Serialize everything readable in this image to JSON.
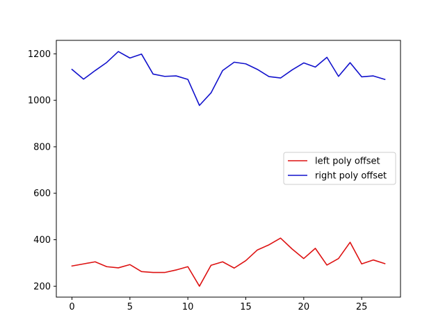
{
  "chart_data": {
    "type": "line",
    "title": "",
    "xlabel": "",
    "ylabel": "",
    "xlim": [
      -1.35,
      28.35
    ],
    "ylim": [
      153,
      1258
    ],
    "xticks": [
      0,
      5,
      10,
      15,
      20,
      25
    ],
    "yticks": [
      200,
      400,
      600,
      800,
      1000,
      1200
    ],
    "grid": false,
    "legend_position": "center-right",
    "x": [
      0,
      1,
      2,
      3,
      4,
      5,
      6,
      7,
      8,
      9,
      10,
      11,
      12,
      13,
      14,
      15,
      16,
      17,
      18,
      19,
      20,
      21,
      22,
      23,
      24,
      25,
      26,
      27
    ],
    "series": [
      {
        "name": "left poly offset",
        "color": "#dd1111",
        "values": [
          287,
          296,
          305,
          284,
          279,
          293,
          263,
          259,
          259,
          270,
          284,
          200,
          290,
          305,
          278,
          310,
          356,
          378,
          407,
          360,
          319,
          363,
          291,
          319,
          389,
          296,
          313,
          297
        ]
      },
      {
        "name": "right poly offset",
        "color": "#1111cc",
        "values": [
          1133,
          1091,
          1128,
          1163,
          1210,
          1182,
          1199,
          1113,
          1103,
          1105,
          1090,
          978,
          1032,
          1128,
          1164,
          1157,
          1133,
          1102,
          1096,
          1131,
          1161,
          1143,
          1185,
          1103,
          1162,
          1101,
          1105,
          1090
        ]
      }
    ]
  }
}
